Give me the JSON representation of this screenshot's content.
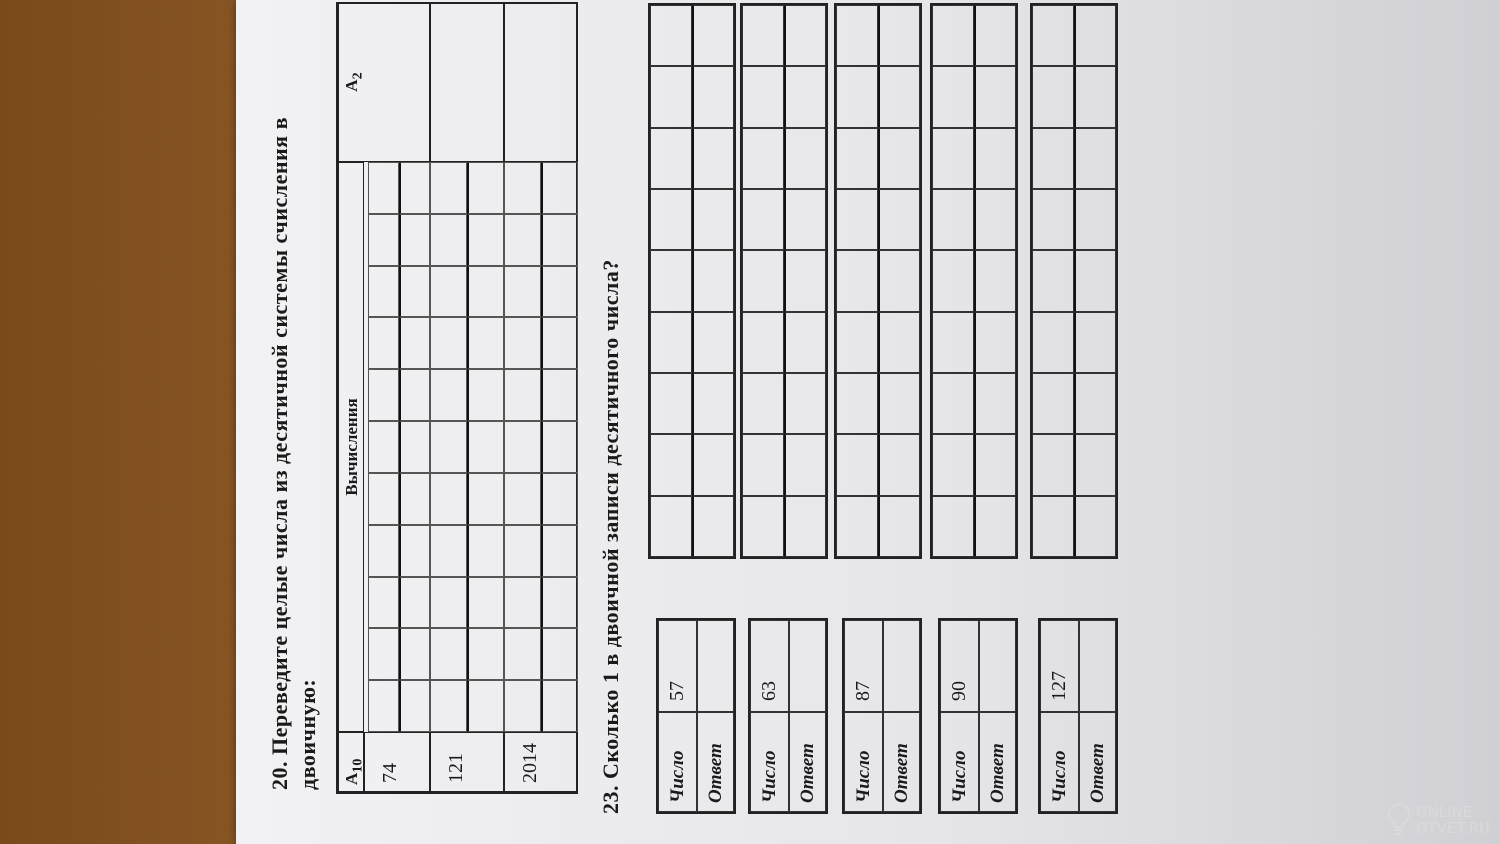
{
  "q20": {
    "number": "20.",
    "text_line1": "Переведите целые числа из десятичной системы счисления в",
    "text_line2": "двоичную:",
    "headers": {
      "a10": "A",
      "a10_sub": "10",
      "calc": "Вычисления",
      "a2": "A",
      "a2_sub": "2"
    },
    "rows": [
      "74",
      "121",
      "2014"
    ]
  },
  "q23": {
    "number": "23.",
    "text": "Сколько 1 в двоичной записи десятичного числа?",
    "number_label": "Число",
    "answer_label": "Ответ",
    "items": [
      {
        "number": "57",
        "answer": ""
      },
      {
        "number": "63",
        "answer": ""
      },
      {
        "number": "87",
        "answer": ""
      },
      {
        "number": "90",
        "answer": ""
      },
      {
        "number": "127",
        "answer": ""
      }
    ]
  },
  "watermark": {
    "line1": "ONLINE",
    "line2": "OTVET.RU"
  },
  "colors": {
    "paper": "#e8e8ec",
    "background": "#8a5a28",
    "ink": "#1a1a1a"
  }
}
